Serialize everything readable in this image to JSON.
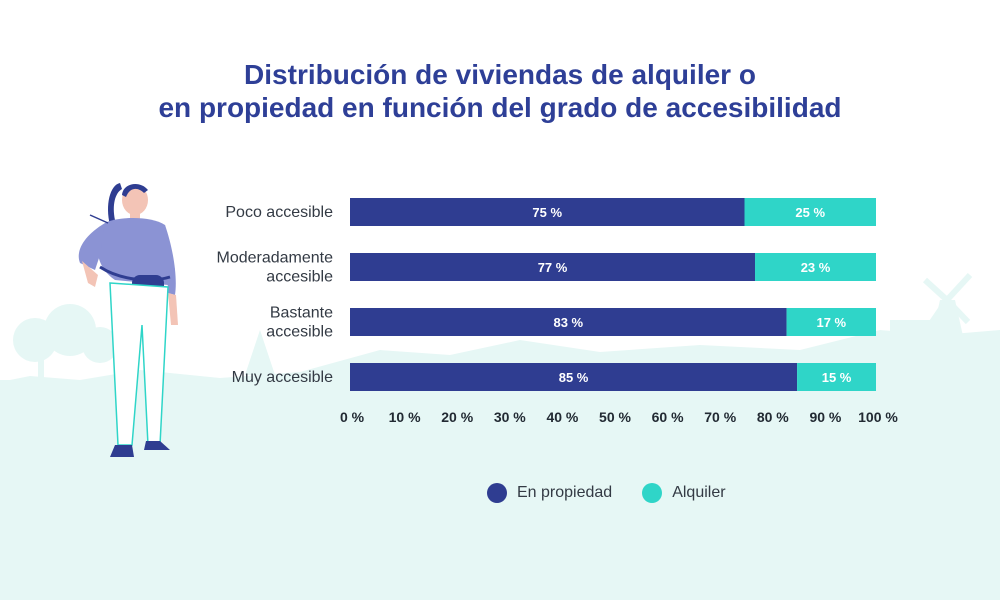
{
  "title": {
    "line1": "Distribución de viviendas de alquiler o",
    "line2": "en propiedad en función del grado de accesibilidad"
  },
  "colors": {
    "propiedad": "#2f3d91",
    "alquiler": "#2fd5c8",
    "title": "#2e3f97",
    "ground": "#e6f7f5"
  },
  "chart_data": {
    "type": "bar",
    "orientation": "horizontal",
    "stacked": true,
    "categories": [
      [
        "Poco accesible"
      ],
      [
        "Moderadamente",
        "accesible"
      ],
      [
        "Bastante",
        "accesible"
      ],
      [
        "Muy accesible"
      ]
    ],
    "series": [
      {
        "name": "En propiedad",
        "values": [
          75,
          77,
          83,
          85
        ],
        "labels": [
          "75 %",
          "77 %",
          "83 %",
          "85 %"
        ]
      },
      {
        "name": "Alquiler",
        "values": [
          25,
          23,
          17,
          15
        ],
        "labels": [
          "25 %",
          "23 %",
          "17 %",
          "15 %"
        ]
      }
    ],
    "xlim": [
      0,
      100
    ],
    "xticks": [
      "0 %",
      "10 %",
      "20 %",
      "30 %",
      "40 %",
      "50 %",
      "60 %",
      "70 %",
      "80 %",
      "90 %",
      "100 %"
    ],
    "grid": false,
    "legend": "bottom"
  },
  "legend": {
    "items": [
      {
        "label": "En propiedad",
        "color": "#2f3d91"
      },
      {
        "label": "Alquiler",
        "color": "#2fd5c8"
      }
    ]
  },
  "decoration": {
    "figure_icon": "woman-illustration-icon",
    "background_icon": "landscape-silhouette-icon"
  }
}
